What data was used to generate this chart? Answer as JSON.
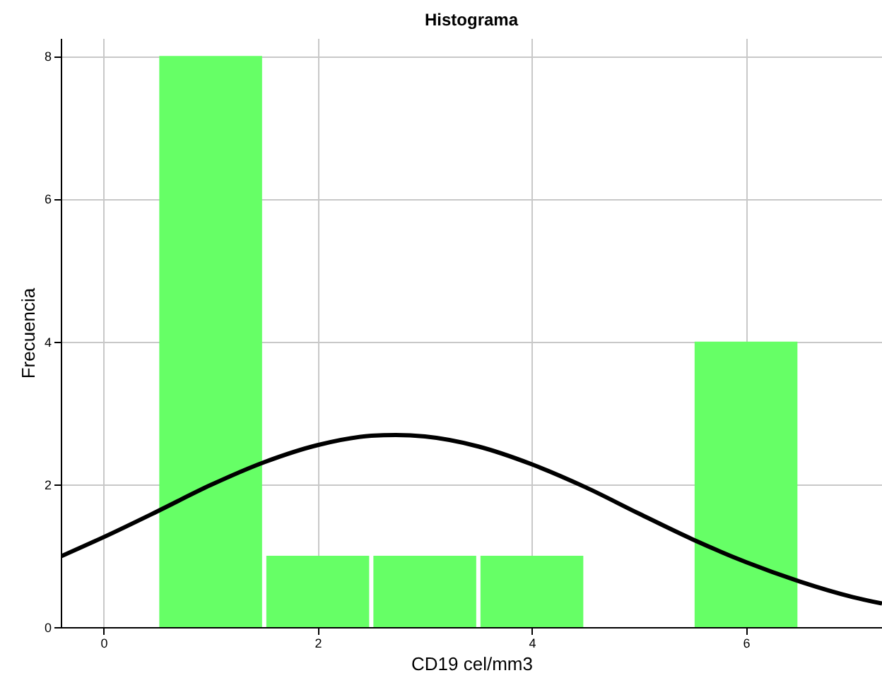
{
  "chart_data": {
    "type": "histogram",
    "title": "Histograma",
    "xlabel": "CD19 cel/mm3",
    "ylabel": "Frecuencia",
    "bins": [
      0.5,
      1.5,
      2.5,
      3.5,
      4.5,
      5.5,
      6.5
    ],
    "values": [
      8,
      1,
      1,
      1,
      0,
      4
    ],
    "color": "#66ff66",
    "series": [
      {
        "type": "line",
        "color": "#000000",
        "x": [
          -0.4,
          0,
          0.5,
          1,
          1.5,
          2,
          2.5,
          2.73,
          3,
          3.5,
          4,
          4.5,
          5,
          5.5,
          6,
          6.5,
          7,
          7.27
        ],
        "values": [
          0.99,
          1.26,
          1.62,
          1.99,
          2.31,
          2.55,
          2.68,
          2.69,
          2.67,
          2.53,
          2.28,
          1.96,
          1.59,
          1.23,
          0.91,
          0.64,
          0.42,
          0.33
        ]
      }
    ],
    "xlim": [
      -0.4,
      7.27
    ],
    "xticks": [
      0,
      2,
      4,
      6
    ],
    "ylim": [
      0,
      8.25
    ],
    "yticks": [
      0,
      2,
      4,
      6,
      8
    ],
    "grid": true
  }
}
